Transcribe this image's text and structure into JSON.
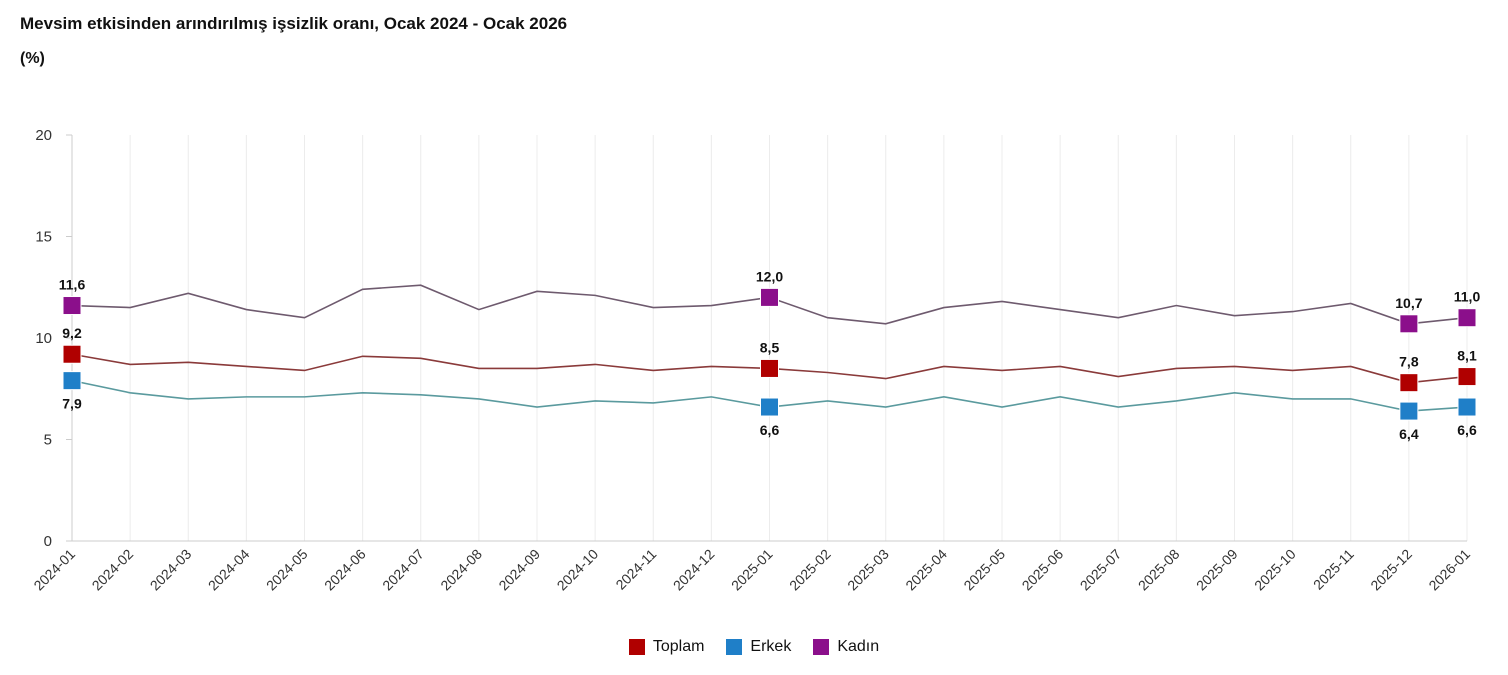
{
  "chart_data": {
    "type": "line",
    "title": "Mevsim etkisinden arındırılmış işsizlik oranı, Ocak 2024 - Ocak 2026",
    "ylabel": "(%)",
    "xlabel": "",
    "ylim": [
      0,
      20
    ],
    "yticks": [
      "0",
      "5",
      "10",
      "15",
      "20"
    ],
    "grid": true,
    "legend_position": "bottom",
    "categories": [
      "2024-01",
      "2024-02",
      "2024-03",
      "2024-04",
      "2024-05",
      "2024-06",
      "2024-07",
      "2024-08",
      "2024-09",
      "2024-10",
      "2024-11",
      "2024-12",
      "2025-01",
      "2025-02",
      "2025-03",
      "2025-04",
      "2025-05",
      "2025-06",
      "2025-07",
      "2025-08",
      "2025-09",
      "2025-10",
      "2025-11",
      "2025-12",
      "2026-01"
    ],
    "labeled_indices": [
      0,
      12,
      23,
      24
    ],
    "series": [
      {
        "name": "Toplam",
        "color": "#b00000",
        "line_color": "#8a3a3a",
        "label_pos": "above",
        "values": [
          9.2,
          8.7,
          8.8,
          8.6,
          8.4,
          9.1,
          9.0,
          8.5,
          8.5,
          8.7,
          8.4,
          8.6,
          8.5,
          8.3,
          8.0,
          8.6,
          8.4,
          8.6,
          8.1,
          8.5,
          8.6,
          8.4,
          8.6,
          7.8,
          8.1
        ],
        "labels": [
          "9,2",
          "8,5",
          "7,8",
          "8,1"
        ]
      },
      {
        "name": "Erkek",
        "color": "#1f7fc8",
        "line_color": "#5a9a9e",
        "label_pos": "below",
        "values": [
          7.9,
          7.3,
          7.0,
          7.1,
          7.1,
          7.3,
          7.2,
          7.0,
          6.6,
          6.9,
          6.8,
          7.1,
          6.6,
          6.9,
          6.6,
          7.1,
          6.6,
          7.1,
          6.6,
          6.9,
          7.3,
          7.0,
          7.0,
          6.4,
          6.6
        ],
        "labels": [
          "7,9",
          "6,6",
          "6,4",
          "6,6"
        ]
      },
      {
        "name": "Kadın",
        "color": "#8b0f8b",
        "line_color": "#6e5a6e",
        "label_pos": "above",
        "values": [
          11.6,
          11.5,
          12.2,
          11.4,
          11.0,
          12.4,
          12.6,
          11.4,
          12.3,
          12.1,
          11.5,
          11.6,
          12.0,
          11.0,
          10.7,
          11.5,
          11.8,
          11.4,
          11.0,
          11.6,
          11.1,
          11.3,
          11.7,
          10.7,
          11.0
        ],
        "labels": [
          "11,6",
          "12,0",
          "10,7",
          "11,0"
        ]
      }
    ]
  }
}
